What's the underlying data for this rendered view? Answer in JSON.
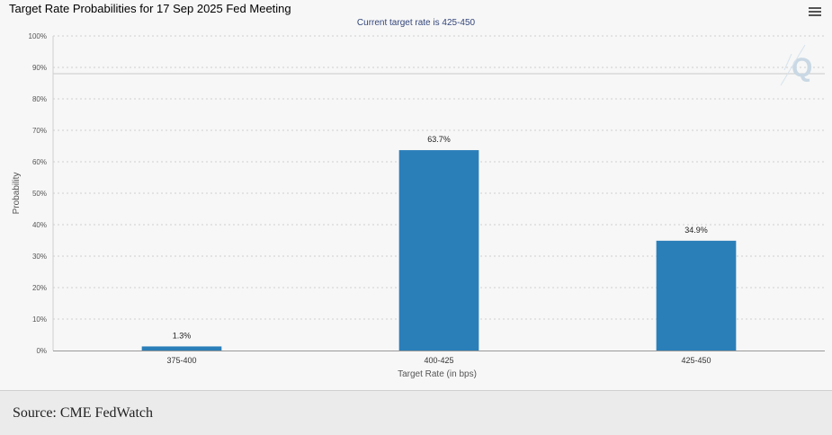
{
  "chart_title": "Target Rate Probabilities for 17 Sep 2025 Fed Meeting",
  "subtitle": "Current target rate is 425-450",
  "source": "Source: CME FedWatch",
  "colors": {
    "bar": "#2b7fb9",
    "grid": "#cfcfcf",
    "axis": "#999999",
    "background": "#f7f7f7"
  },
  "chart_data": {
    "type": "bar",
    "categories": [
      "375-400",
      "400-425",
      "425-450"
    ],
    "values": [
      1.3,
      63.7,
      34.9
    ],
    "data_labels": [
      "1.3%",
      "63.7%",
      "34.9%"
    ],
    "ylim": [
      0,
      100
    ],
    "yticks": [
      0,
      10,
      20,
      30,
      40,
      50,
      60,
      70,
      80,
      90,
      100
    ],
    "ytick_labels": [
      "0%",
      "10%",
      "20%",
      "30%",
      "40%",
      "50%",
      "60%",
      "70%",
      "80%",
      "90%",
      "100%"
    ],
    "xlabel": "Target Rate (in bps)",
    "ylabel": "Probability",
    "grid": true
  }
}
